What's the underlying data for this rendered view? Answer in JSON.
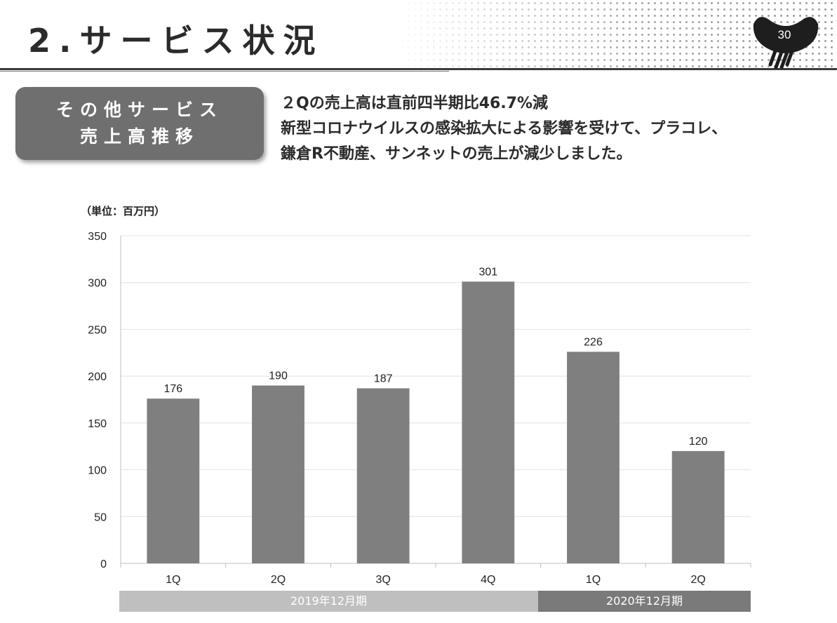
{
  "header": {
    "title": "2.サービス状況",
    "page_number": "30"
  },
  "label_box": {
    "lines": [
      "その他サービス",
      "売上高推移"
    ]
  },
  "summary": {
    "lines": [
      "２Qの売上高は直前四半期比46.7%減",
      "新型コロナウイルスの感染拡大による影響を受けて、プラコレ、",
      "鎌倉R不動産、サンネットの売上が減少しました。"
    ]
  },
  "chart_data": {
    "type": "bar",
    "unit_label": "（単位：百万円）",
    "categories": [
      "1Q",
      "2Q",
      "3Q",
      "4Q",
      "1Q",
      "2Q"
    ],
    "values": [
      176,
      190,
      187,
      301,
      226,
      120
    ],
    "data_labels": [
      "176",
      "190",
      "187",
      "301",
      "226",
      "120"
    ],
    "ylim": [
      0,
      350
    ],
    "yticks": [
      0,
      50,
      100,
      150,
      200,
      250,
      300,
      350
    ],
    "grid": true,
    "periods": [
      {
        "label": "2019年12月期",
        "categories": [
          "1Q",
          "2Q",
          "3Q",
          "4Q"
        ]
      },
      {
        "label": "2020年12月期",
        "categories": [
          "1Q",
          "2Q"
        ]
      }
    ],
    "colors": {
      "bar": "#7f7f7f",
      "grid": "#e2e2e2",
      "axis": "#bfbfbf",
      "period_2019": "#bfbfbf",
      "period_2020": "#7a7a7a"
    }
  }
}
